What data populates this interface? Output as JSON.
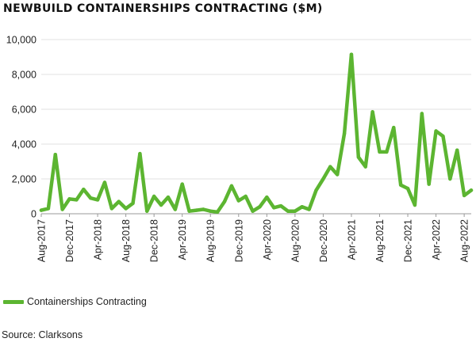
{
  "title": "NEWBUILD CONTAINERSHIPS CONTRACTING ($M)",
  "source": "Source: Clarksons",
  "chart_data": {
    "type": "line",
    "title": "NEWBUILD CONTAINERSHIPS CONTRACTING ($M)",
    "xlabel": "",
    "ylabel": "",
    "ylim": [
      0,
      10000
    ],
    "yticks": [
      0,
      2000,
      4000,
      6000,
      8000,
      10000
    ],
    "ytick_labels": [
      "0",
      "2,000",
      "4,000",
      "6,000",
      "8,000",
      "10,000"
    ],
    "xticks": [
      "Aug-2017",
      "Dec-2017",
      "Apr-2018",
      "Aug-2018",
      "Dec-2018",
      "Apr-2019",
      "Aug-2019",
      "Dec-2019",
      "Apr-2020",
      "Aug-2020",
      "Dec-2020",
      "Apr-2021",
      "Aug-2021",
      "Dec-2021",
      "Apr-2022",
      "Aug-2022"
    ],
    "grid": "horizontal",
    "legend": "bottom-left",
    "colors": {
      "series": "#5cb531",
      "grid": "#e2e2e2",
      "axis": "#999999"
    },
    "x": [
      "Aug-2017",
      "Sep-2017",
      "Oct-2017",
      "Nov-2017",
      "Dec-2017",
      "Jan-2018",
      "Feb-2018",
      "Mar-2018",
      "Apr-2018",
      "May-2018",
      "Jun-2018",
      "Jul-2018",
      "Aug-2018",
      "Sep-2018",
      "Oct-2018",
      "Nov-2018",
      "Dec-2018",
      "Jan-2019",
      "Feb-2019",
      "Mar-2019",
      "Apr-2019",
      "May-2019",
      "Jun-2019",
      "Jul-2019",
      "Aug-2019",
      "Sep-2019",
      "Oct-2019",
      "Nov-2019",
      "Dec-2019",
      "Jan-2020",
      "Feb-2020",
      "Mar-2020",
      "Apr-2020",
      "May-2020",
      "Jun-2020",
      "Jul-2020",
      "Aug-2020",
      "Sep-2020",
      "Oct-2020",
      "Nov-2020",
      "Dec-2020",
      "Jan-2021",
      "Feb-2021",
      "Mar-2021",
      "Apr-2021",
      "May-2021",
      "Jun-2021",
      "Jul-2021",
      "Aug-2021",
      "Sep-2021",
      "Oct-2021",
      "Nov-2021",
      "Dec-2021",
      "Jan-2022",
      "Feb-2022",
      "Mar-2022",
      "Apr-2022",
      "May-2022",
      "Jun-2022",
      "Jul-2022",
      "Aug-2022",
      "Sep-2022"
    ],
    "series": [
      {
        "name": "Containerships Contracting",
        "values": [
          200,
          300,
          3400,
          250,
          850,
          800,
          1400,
          900,
          800,
          1800,
          300,
          700,
          300,
          600,
          3450,
          150,
          1000,
          500,
          950,
          250,
          1700,
          150,
          200,
          250,
          150,
          100,
          700,
          1600,
          750,
          1000,
          150,
          400,
          950,
          350,
          450,
          150,
          150,
          400,
          250,
          1350,
          2000,
          2700,
          2250,
          4600,
          9150,
          3250,
          2700,
          5850,
          3550,
          3550,
          4950,
          1650,
          1450,
          500,
          5750,
          1700,
          4750,
          4450,
          2000,
          3650,
          1050,
          1350
        ]
      }
    ]
  }
}
